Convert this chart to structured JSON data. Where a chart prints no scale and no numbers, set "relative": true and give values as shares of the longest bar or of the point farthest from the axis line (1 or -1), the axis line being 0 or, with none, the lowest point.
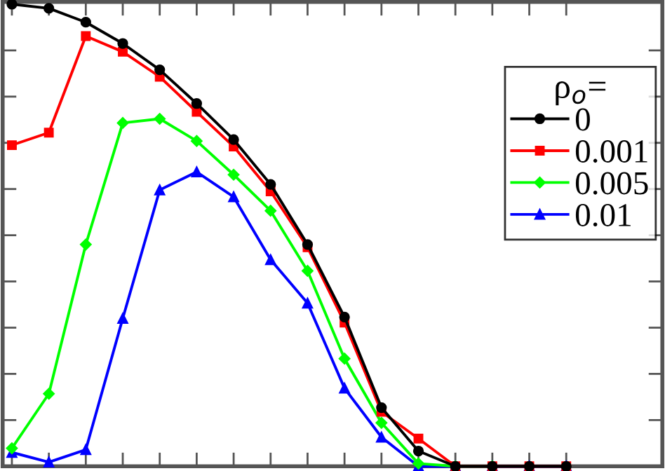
{
  "chart_data": {
    "type": "line",
    "relative": true,
    "legend_title": "ρ$_{o}$=",
    "legend": "upper right",
    "grid": false,
    "line_style": "solid",
    "categories": [
      null,
      null,
      null,
      null,
      null,
      null,
      null,
      null,
      null,
      null,
      null,
      null,
      null,
      null,
      null,
      null
    ],
    "series": [
      {
        "name": "0",
        "color": "#000000",
        "marker": "circle",
        "values": [
          1.0,
          0.991,
          0.961,
          0.915,
          0.858,
          0.785,
          0.707,
          0.61,
          0.48,
          0.323,
          0.127,
          0.033,
          0,
          0,
          0,
          0
        ]
      },
      {
        "name": "0.001",
        "color": "#ff0000",
        "marker": "square",
        "values": [
          0.695,
          0.722,
          0.931,
          0.897,
          0.843,
          0.767,
          0.692,
          0.595,
          0.474,
          0.311,
          0.118,
          0.06,
          0,
          0,
          0,
          0
        ]
      },
      {
        "name": "0.005",
        "color": "#00ff00",
        "marker": "diamond",
        "values": [
          0.039,
          0.157,
          0.48,
          0.743,
          0.752,
          0.704,
          0.631,
          0.553,
          0.423,
          0.233,
          0.094,
          0.006,
          0,
          0,
          null,
          null
        ]
      },
      {
        "name": "0.01",
        "color": "#0000ff",
        "marker": "triangle",
        "values": [
          0.03,
          0.009,
          0.036,
          0.32,
          0.598,
          0.637,
          0.583,
          0.447,
          0.353,
          0.169,
          0.063,
          0,
          0,
          0,
          0,
          0
        ]
      }
    ]
  }
}
